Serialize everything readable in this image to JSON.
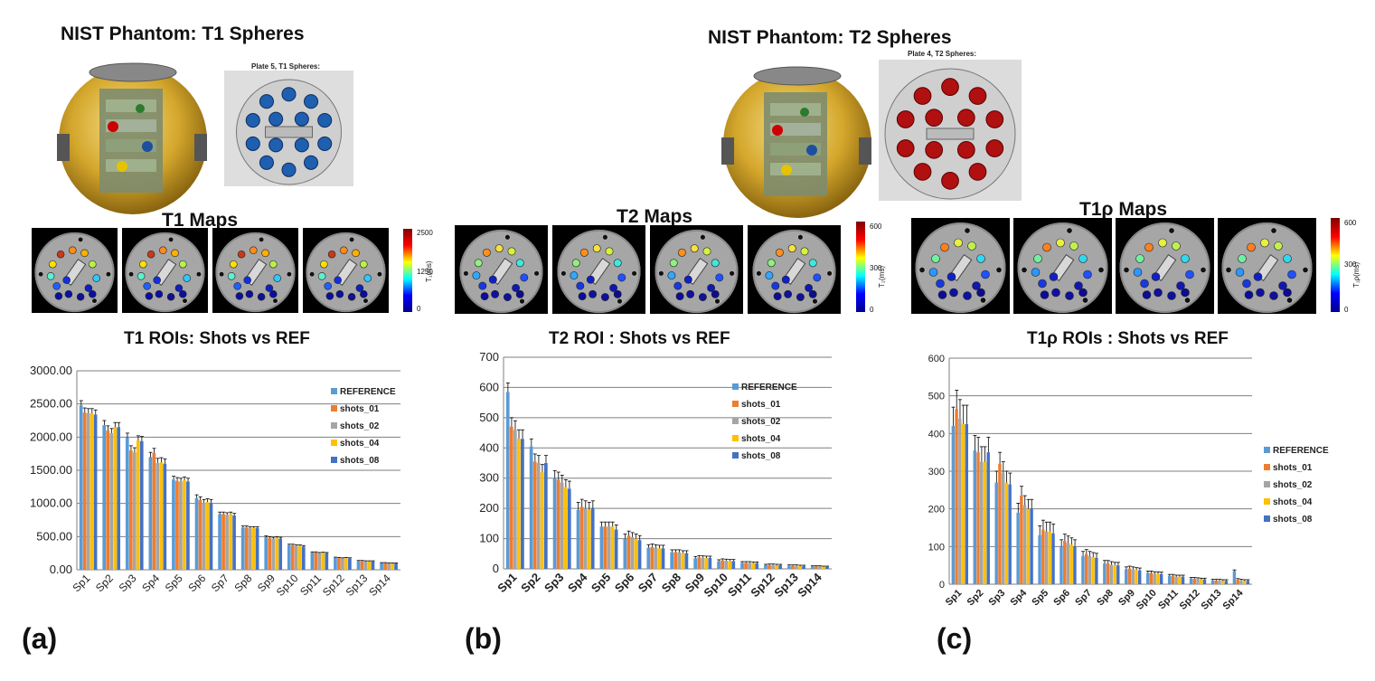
{
  "colors": {
    "reference": "#5B9BD5",
    "shots_01": "#ED7D31",
    "shots_02": "#A5A5A5",
    "shots_04": "#FFC000",
    "shots_08": "#4472C4",
    "t1_sphere": "#1F5FB0",
    "t2_sphere": "#B01010",
    "phantom_gold": "#D4A72C"
  },
  "panels": [
    {
      "heading": "NIST Phantom: T1  Spheres",
      "plate_label": "Plate 5, T1 Spheres:",
      "maps_title": "T1  Maps",
      "colorbar": {
        "max": "2500",
        "mid": "1250",
        "min": "0",
        "unit": "T₁(ms)"
      },
      "panel_label": "(a)"
    },
    {
      "heading": "NIST Phantom: T2  Spheres",
      "plate_label": "Plate 4, T2 Spheres:",
      "maps_title": "T2  Maps",
      "colorbar": {
        "max": "600",
        "mid": "300",
        "min": "0",
        "unit": "T₂(ms)"
      },
      "panel_label": "(b)"
    },
    {
      "maps_title": "T1ρ  Maps",
      "colorbar": {
        "max": "600",
        "mid": "300",
        "min": "0",
        "unit": "T₁ρ(ms)"
      },
      "panel_label": "(c)"
    }
  ],
  "chart_data": [
    {
      "type": "bar",
      "title": "T1  ROIs: Shots vs REF",
      "categories": [
        "Sp1",
        "Sp2",
        "Sp3",
        "Sp4",
        "Sp5",
        "Sp6",
        "Sp7",
        "Sp8",
        "Sp9",
        "Sp10",
        "Sp11",
        "Sp12",
        "Sp13",
        "Sp14"
      ],
      "ylim": [
        0,
        3000
      ],
      "yticks": [
        "0.00",
        "500.00",
        "1000.00",
        "1500.00",
        "2000.00",
        "2500.00",
        "3000.00"
      ],
      "legend_position": "right",
      "series": [
        {
          "name": "REFERENCE",
          "values": [
            2480,
            2180,
            1990,
            1700,
            1360,
            1080,
            840,
            640,
            490,
            370,
            260,
            180,
            130,
            100
          ]
        },
        {
          "name": "shots_01",
          "values": [
            2370,
            2100,
            1800,
            1760,
            1340,
            1050,
            840,
            640,
            480,
            370,
            260,
            175,
            130,
            100
          ]
        },
        {
          "name": "shots_02",
          "values": [
            2360,
            2060,
            1770,
            1610,
            1330,
            1010,
            830,
            630,
            470,
            360,
            250,
            170,
            125,
            95
          ]
        },
        {
          "name": "shots_04",
          "values": [
            2360,
            2150,
            1950,
            1620,
            1350,
            1020,
            840,
            630,
            480,
            360,
            255,
            175,
            125,
            95
          ]
        },
        {
          "name": "shots_08",
          "values": [
            2340,
            2150,
            1940,
            1600,
            1330,
            1010,
            820,
            630,
            470,
            350,
            250,
            170,
            125,
            95
          ]
        }
      ],
      "errors": [
        70,
        70,
        70,
        70,
        50,
        50,
        30,
        20,
        20,
        15,
        10,
        10,
        10,
        8
      ]
    },
    {
      "type": "bar",
      "title": "T2  ROI : Shots vs REF",
      "categories": [
        "Sp1",
        "Sp2",
        "Sp3",
        "Sp4",
        "Sp5",
        "Sp6",
        "Sp7",
        "Sp8",
        "Sp9",
        "Sp10",
        "Sp11",
        "Sp12",
        "Sp13",
        "Sp14"
      ],
      "ylim": [
        0,
        700
      ],
      "yticks": [
        "0",
        "100",
        "200",
        "300",
        "400",
        "500",
        "600",
        "700"
      ],
      "legend_position": "right",
      "series": [
        {
          "name": "REFERENCE",
          "values": [
            585,
            405,
            300,
            195,
            140,
            100,
            70,
            55,
            35,
            25,
            20,
            12,
            10,
            8
          ]
        },
        {
          "name": "shots_01",
          "values": [
            470,
            355,
            295,
            205,
            140,
            110,
            72,
            55,
            38,
            28,
            20,
            13,
            10,
            8
          ]
        },
        {
          "name": "shots_02",
          "values": [
            460,
            350,
            285,
            200,
            140,
            105,
            70,
            55,
            37,
            27,
            20,
            13,
            10,
            8
          ]
        },
        {
          "name": "shots_04",
          "values": [
            430,
            320,
            270,
            195,
            140,
            100,
            68,
            52,
            36,
            26,
            19,
            12,
            9,
            7
          ]
        },
        {
          "name": "shots_08",
          "values": [
            430,
            350,
            265,
            200,
            130,
            95,
            68,
            52,
            36,
            26,
            19,
            12,
            9,
            7
          ]
        }
      ],
      "errors": [
        30,
        25,
        25,
        25,
        15,
        15,
        10,
        8,
        6,
        5,
        4,
        3,
        3,
        2
      ]
    },
    {
      "type": "bar",
      "title": "T1ρ ROIs : Shots vs REF",
      "categories": [
        "Sp1",
        "Sp2",
        "Sp3",
        "Sp4",
        "Sp5",
        "Sp6",
        "Sp7",
        "Sp8",
        "Sp9",
        "Sp10",
        "Sp11",
        "Sp12",
        "Sp13",
        "Sp14"
      ],
      "ylim": [
        0,
        600
      ],
      "yticks": [
        "0",
        "100",
        "200",
        "300",
        "400",
        "500",
        "600"
      ],
      "legend_position": "right",
      "series": [
        {
          "name": "REFERENCE",
          "values": [
            420,
            355,
            270,
            190,
            130,
            100,
            75,
            55,
            40,
            30,
            22,
            15,
            10,
            35
          ]
        },
        {
          "name": "shots_01",
          "values": [
            465,
            350,
            320,
            235,
            145,
            115,
            80,
            55,
            42,
            30,
            22,
            15,
            10,
            12
          ]
        },
        {
          "name": "shots_02",
          "values": [
            440,
            325,
            295,
            210,
            140,
            110,
            75,
            52,
            40,
            28,
            20,
            14,
            10,
            10
          ]
        },
        {
          "name": "shots_04",
          "values": [
            425,
            325,
            270,
            200,
            140,
            105,
            72,
            50,
            38,
            28,
            20,
            13,
            9,
            9
          ]
        },
        {
          "name": "shots_08",
          "values": [
            425,
            350,
            265,
            200,
            135,
            100,
            70,
            50,
            37,
            27,
            20,
            13,
            9,
            9
          ]
        }
      ],
      "errors": [
        50,
        40,
        30,
        25,
        25,
        18,
        12,
        8,
        6,
        5,
        4,
        3,
        3,
        3
      ]
    }
  ]
}
